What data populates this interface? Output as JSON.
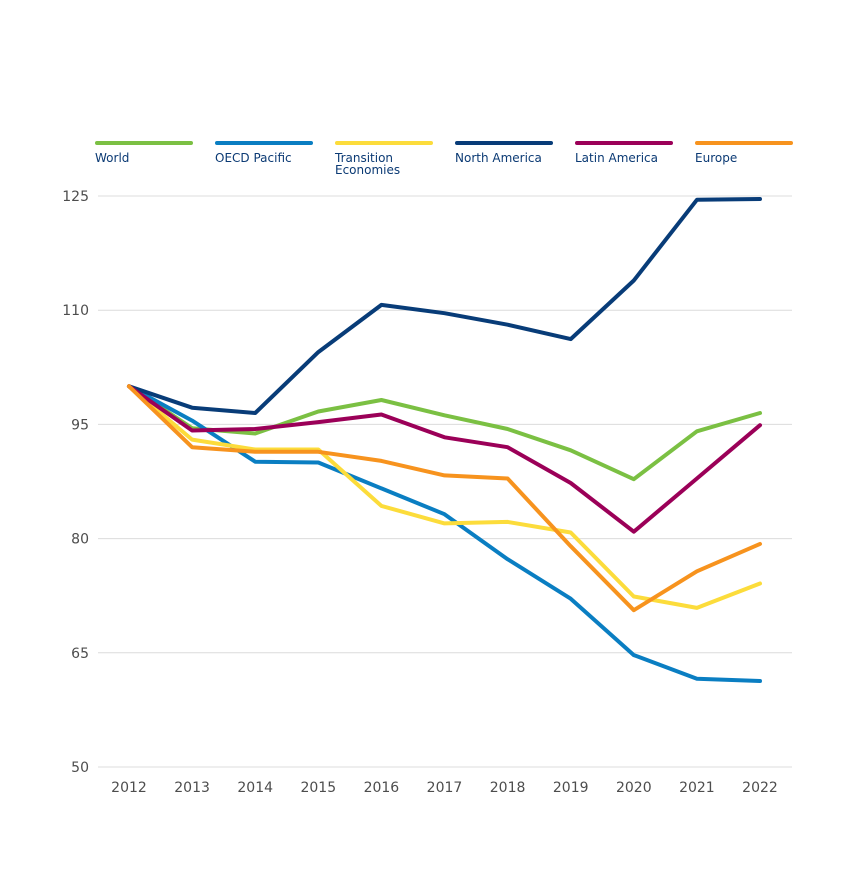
{
  "chart_data": {
    "type": "line",
    "title": "",
    "xlabel": "",
    "ylabel": "",
    "x": [
      "2012",
      "2013",
      "2014",
      "2015",
      "2016",
      "2017",
      "2018",
      "2019",
      "2020",
      "2021",
      "2022"
    ],
    "ylim": [
      50,
      125
    ],
    "yticks": [
      "50",
      "65",
      "80",
      "95",
      "110",
      "125"
    ],
    "ytick_values": [
      50,
      65,
      80,
      95,
      110,
      125
    ],
    "grid": true,
    "legend_position": "top",
    "series": [
      {
        "name": "World",
        "color": "#7bc043",
        "values": [
          100,
          94.5,
          93.8,
          96.7,
          98.2,
          96.2,
          94.4,
          91.6,
          87.8,
          94.1,
          96.5
        ]
      },
      {
        "name": "OECD Pacific",
        "color": "#0a7ec2",
        "values": [
          100,
          95.5,
          90.1,
          90.0,
          86.6,
          83.2,
          77.3,
          72.1,
          64.7,
          61.6,
          61.3
        ]
      },
      {
        "name": "Transition Economies",
        "color": "#fcdc3b",
        "values": [
          100,
          93.0,
          91.7,
          91.7,
          84.3,
          82.0,
          82.2,
          80.8,
          72.4,
          70.9,
          74.1
        ]
      },
      {
        "name": "North America",
        "color": "#083c78",
        "values": [
          100,
          97.2,
          96.5,
          104.5,
          110.7,
          109.6,
          108.1,
          106.2,
          113.9,
          124.5,
          124.6
        ]
      },
      {
        "name": "Latin America",
        "color": "#9b0058",
        "values": [
          100,
          94.2,
          94.4,
          95.3,
          96.3,
          93.3,
          92.0,
          87.3,
          80.9,
          87.9,
          94.9
        ]
      },
      {
        "name": "Europe",
        "color": "#f7931e",
        "values": [
          100,
          92.0,
          91.4,
          91.4,
          90.2,
          88.3,
          87.9,
          79.0,
          70.6,
          75.7,
          79.3
        ]
      }
    ]
  }
}
